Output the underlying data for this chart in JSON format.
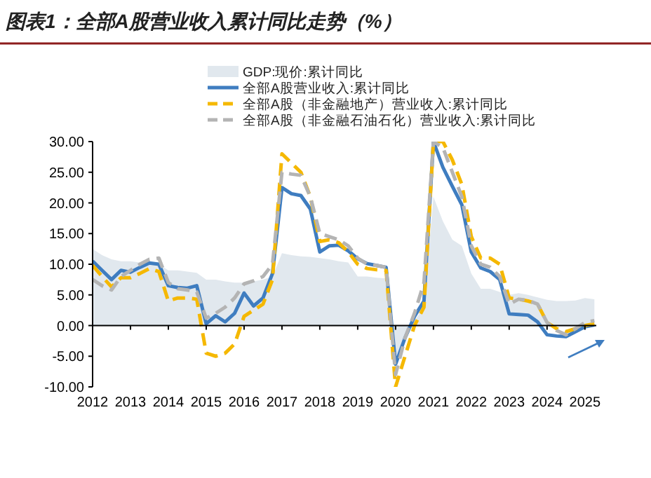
{
  "chart_data": {
    "type": "line",
    "title": "图表1：全部A股营业收入累计同比走势（%）",
    "x": [
      2012,
      2012.25,
      2012.5,
      2012.75,
      2013,
      2013.25,
      2013.5,
      2013.75,
      2014,
      2014.25,
      2014.5,
      2014.75,
      2015,
      2015.25,
      2015.5,
      2015.75,
      2016,
      2016.25,
      2016.5,
      2016.75,
      2017,
      2017.25,
      2017.5,
      2017.75,
      2018,
      2018.25,
      2018.5,
      2018.75,
      2019,
      2019.25,
      2019.5,
      2019.75,
      2020,
      2020.25,
      2020.5,
      2020.75,
      2021,
      2021.25,
      2021.5,
      2021.75,
      2022,
      2022.25,
      2022.5,
      2022.75,
      2023,
      2023.25,
      2023.5,
      2023.75,
      2024,
      2024.25,
      2024.5,
      2024.75,
      2025,
      2025.25
    ],
    "series": [
      {
        "name": "GDP:现价:累计同比",
        "type": "area",
        "color": "#e1e8ee",
        "values": [
          12.5,
          11.5,
          10.8,
          10.5,
          10.5,
          10.3,
          10.2,
          10,
          9,
          9,
          8.8,
          8.6,
          7.5,
          7.5,
          7.2,
          7,
          7,
          7.2,
          7.5,
          8,
          11.8,
          11.5,
          11.3,
          11.2,
          11,
          10.8,
          10.5,
          10.3,
          8,
          8,
          7.8,
          7.7,
          -5.3,
          -1.6,
          0.8,
          3,
          21,
          17,
          14,
          13,
          8.5,
          6,
          6,
          5.5,
          5,
          5.3,
          5,
          4.6,
          4.2,
          4,
          4,
          4.1,
          4.5,
          4.3
        ]
      },
      {
        "name": "全部A股营业收入:累计同比",
        "color": "#3f7dc0",
        "line_style": "solid",
        "values": [
          10.5,
          9,
          7.5,
          9,
          8.7,
          9.5,
          10.2,
          10,
          6.5,
          6.2,
          6.1,
          6.5,
          0.3,
          1.6,
          0.6,
          2,
          5.3,
          3.2,
          4.5,
          8.5,
          22.5,
          21.5,
          21.2,
          19,
          12,
          13,
          13.1,
          12.2,
          10.9,
          10.1,
          9.8,
          9.5,
          -6.3,
          -2,
          1.5,
          4,
          30,
          25.8,
          22.7,
          19.7,
          12,
          9.4,
          8.8,
          7.5,
          1.9,
          1.8,
          1.7,
          0.6,
          -1.5,
          -1.7,
          -1.8,
          -1,
          -0.2,
          0.1
        ]
      },
      {
        "name": "全部A股（非金融地产）营业收入:累计同比",
        "color": "#f5b800",
        "line_style": "dashed",
        "values": [
          9.8,
          8,
          6.3,
          7.8,
          7.8,
          8.5,
          9.3,
          8.8,
          4,
          4.5,
          4.5,
          4.3,
          -4.5,
          -5,
          -4.5,
          -3,
          1.5,
          2.5,
          3.5,
          7.5,
          28,
          26.5,
          25,
          21,
          13.7,
          14,
          13.5,
          12,
          10,
          9.3,
          9.1,
          9,
          -10,
          -5,
          0,
          3,
          30,
          30,
          27,
          23,
          14.5,
          11,
          11,
          10,
          4.5,
          4.3,
          4,
          3.5,
          0.5,
          -0.5,
          -1,
          -0.5,
          0,
          0.3
        ]
      },
      {
        "name": "全部A股（非金融石油石化）营业收入:累计同比",
        "color": "#b4b4b4",
        "line_style": "dashed",
        "values": [
          7.5,
          6.5,
          5.8,
          8,
          9,
          10,
          10.8,
          11,
          7,
          6,
          5.8,
          5.5,
          1.2,
          2,
          3,
          4.5,
          6.8,
          7.3,
          8,
          10,
          25,
          24.7,
          24.5,
          21,
          15,
          14.5,
          14,
          13,
          11,
          10,
          9.8,
          9.5,
          -8,
          -2,
          2,
          7,
          30,
          29,
          25,
          21,
          13,
          10,
          9.5,
          8,
          3.5,
          4.3,
          4.1,
          3.5,
          0.5,
          -0.8,
          -1.5,
          -0.5,
          0.5,
          0.8
        ]
      }
    ],
    "xlim": [
      2012,
      2025.3
    ],
    "xticks": [
      2012,
      2013,
      2014,
      2015,
      2016,
      2017,
      2018,
      2019,
      2020,
      2021,
      2022,
      2023,
      2024,
      2025
    ],
    "ylim": [
      -10,
      30
    ],
    "yticks": [
      {
        "value": -10,
        "label": "-10.00"
      },
      {
        "value": -5,
        "label": "-5.00"
      },
      {
        "value": 0,
        "label": "0.00"
      },
      {
        "value": 5,
        "label": "5.00"
      },
      {
        "value": 10,
        "label": "10.00"
      },
      {
        "value": 15,
        "label": "15.00"
      },
      {
        "value": 20,
        "label": "20.00"
      },
      {
        "value": 25,
        "label": "25.00"
      },
      {
        "value": 30,
        "label": "30.00"
      }
    ],
    "legend": "top",
    "marker": "none"
  }
}
